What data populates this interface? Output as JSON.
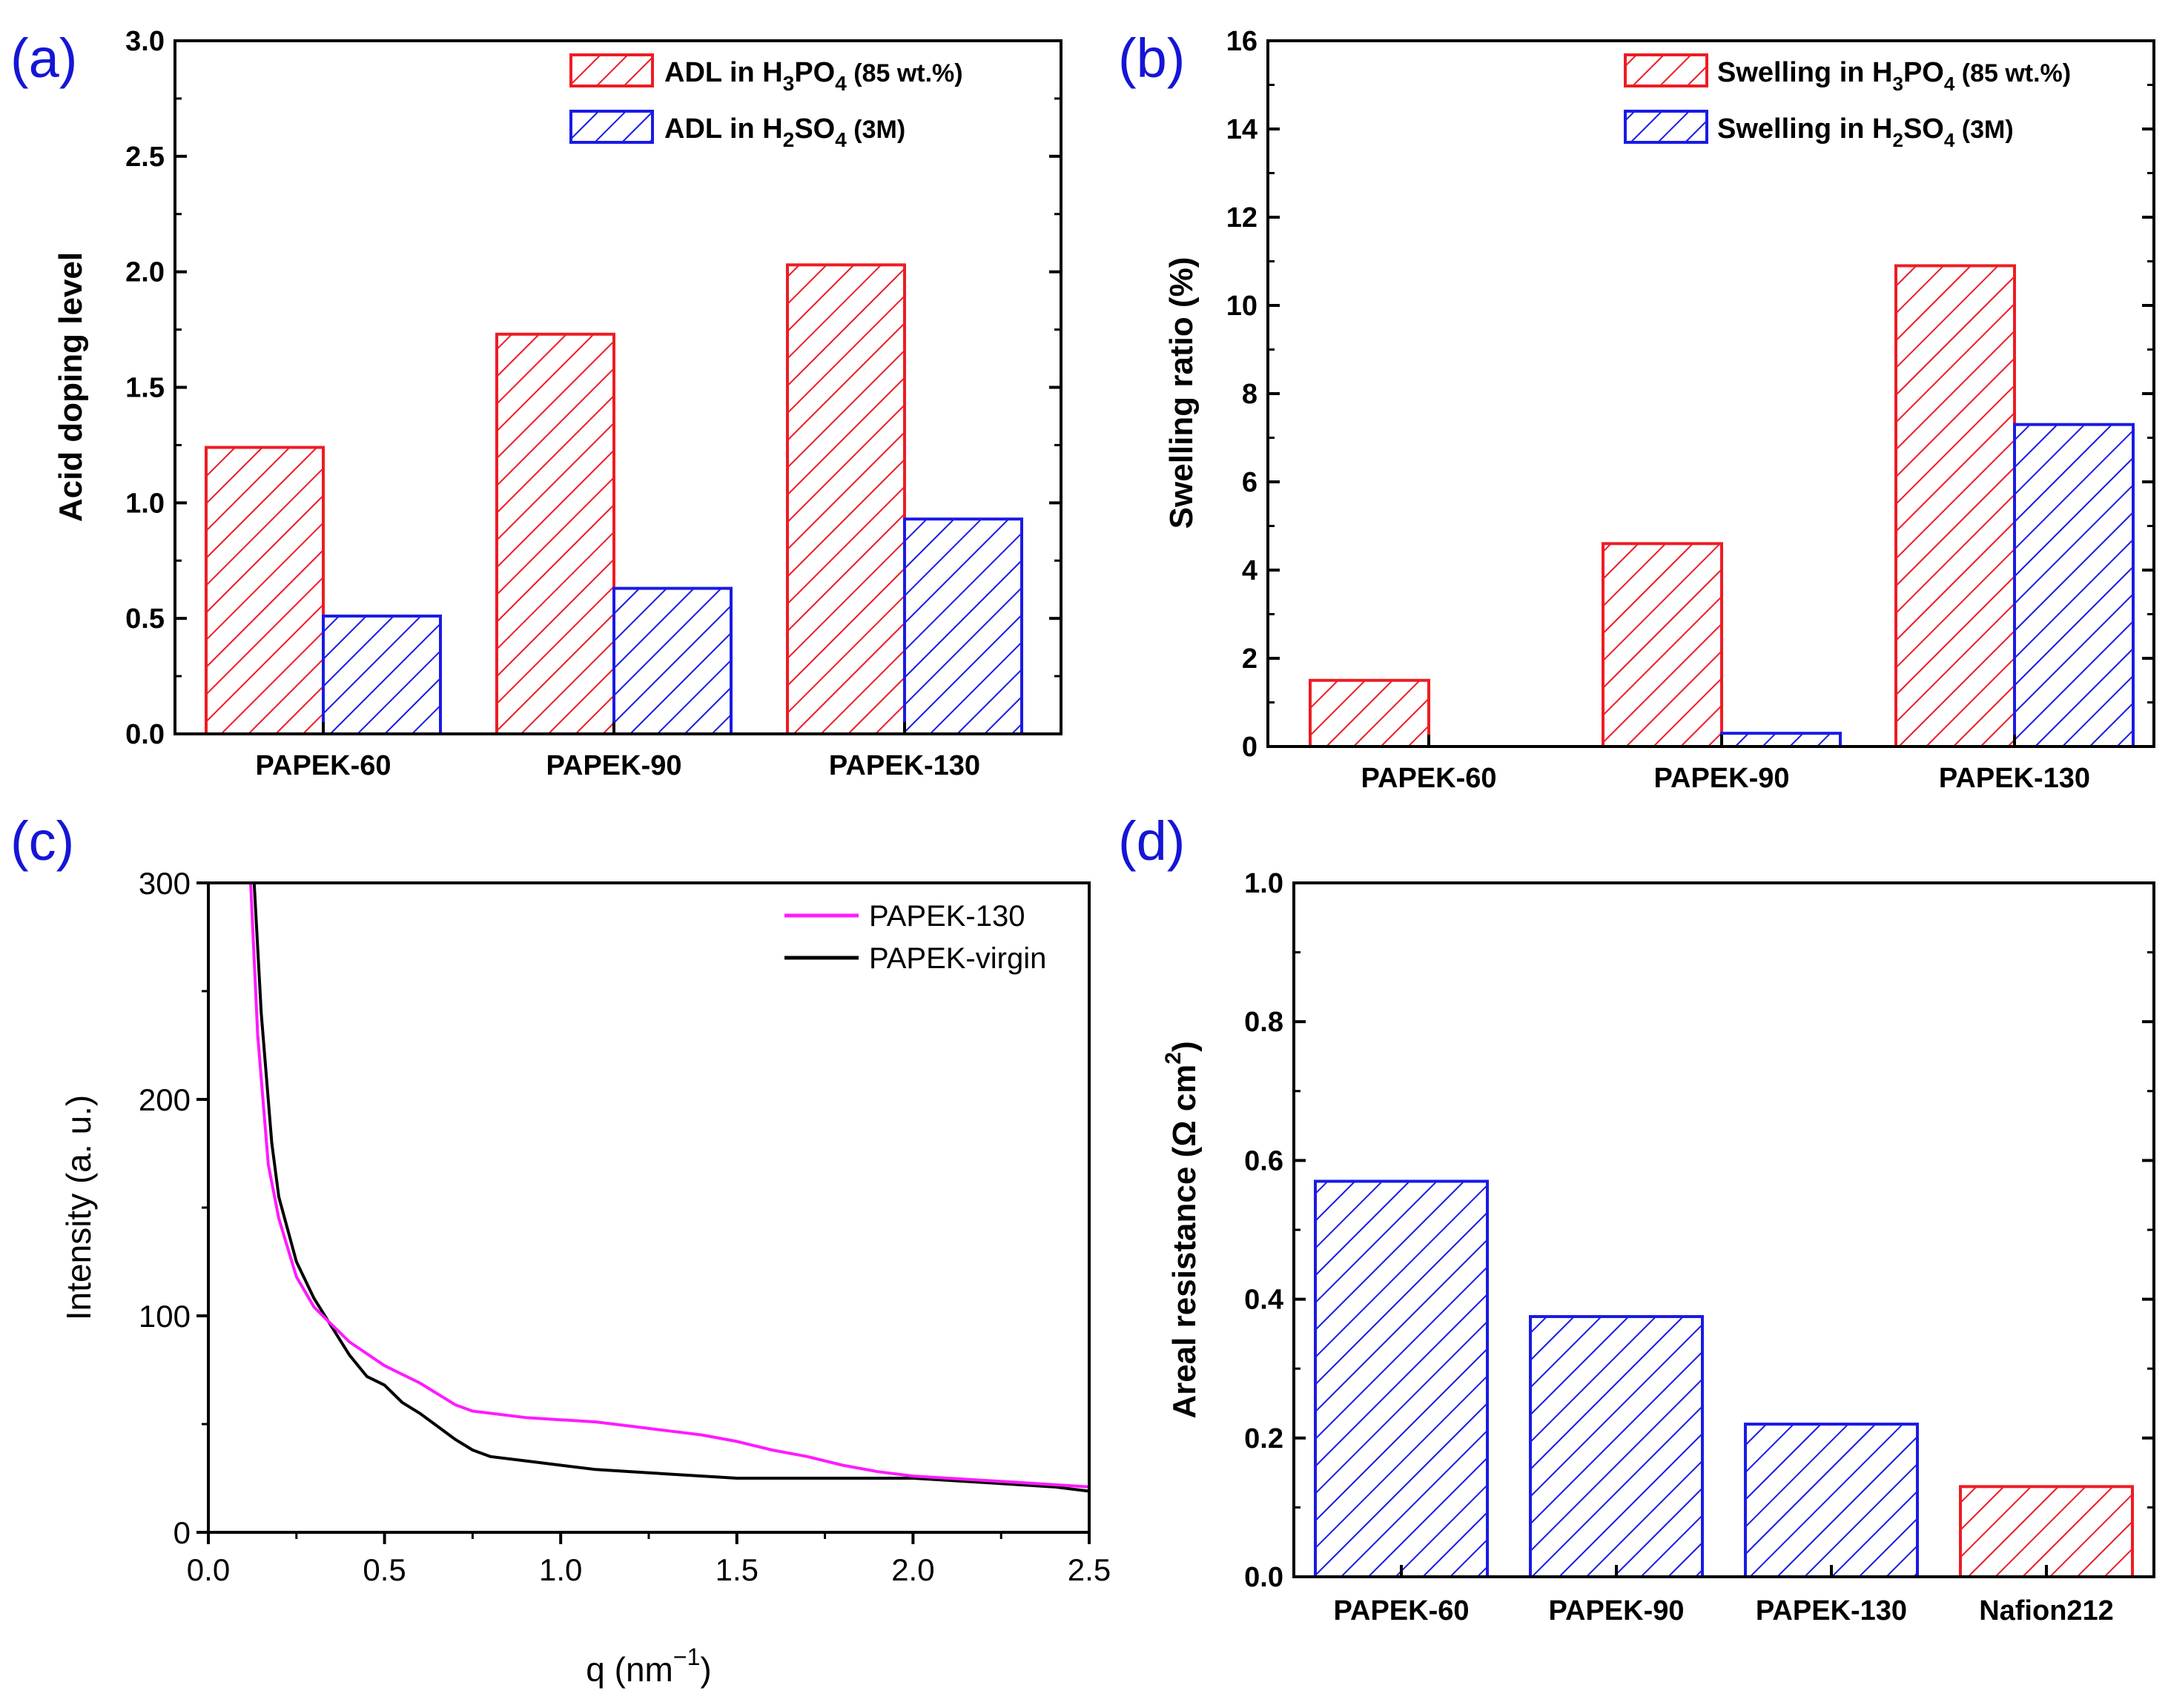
{
  "colors": {
    "red": "#ee1c24",
    "blue": "#1a1ae6",
    "magenta": "#ff1aff",
    "black": "#000000",
    "panel_label": "#1515d6"
  },
  "chart_data": [
    {
      "panel": "(a)",
      "type": "bar",
      "categories": [
        "PAPEK-60",
        "PAPEK-90",
        "PAPEK-130"
      ],
      "series": [
        {
          "name": "ADL in H3PO4 (85 wt.%)",
          "legend_parts": [
            "ADL in H",
            "3",
            "PO",
            "4",
            " (85 wt.%)"
          ],
          "color": "#ee1c24",
          "values": [
            1.24,
            1.73,
            2.03
          ]
        },
        {
          "name": "ADL in H2SO4 (3M)",
          "legend_parts": [
            "ADL in H",
            "2",
            "SO",
            "4",
            " (3M)"
          ],
          "color": "#1a1ae6",
          "values": [
            0.51,
            0.63,
            0.93
          ]
        }
      ],
      "ylabel": "Acid doping level",
      "xlabel": "",
      "ylim": [
        0,
        3.0
      ],
      "yticks": [
        "0.0",
        "0.5",
        "1.0",
        "1.5",
        "2.0",
        "2.5",
        "3.0"
      ],
      "legend_position": "top-right"
    },
    {
      "panel": "(b)",
      "type": "bar",
      "categories": [
        "PAPEK-60",
        "PAPEK-90",
        "PAPEK-130"
      ],
      "series": [
        {
          "name": "Swelling in H3PO4 (85 wt.%)",
          "legend_parts": [
            "Swelling in H",
            "3",
            "PO",
            "4",
            " (85 wt.%)"
          ],
          "color": "#ee1c24",
          "values": [
            1.5,
            4.6,
            10.9
          ]
        },
        {
          "name": "Swelling in H2SO4 (3M)",
          "legend_parts": [
            "Swelling in H",
            "2",
            "SO",
            "4",
            " (3M)"
          ],
          "color": "#1a1ae6",
          "values": [
            0.0,
            0.3,
            7.3
          ]
        }
      ],
      "ylabel": "Swelling ratio (%)",
      "xlabel": "",
      "ylim": [
        0,
        16
      ],
      "yticks": [
        "0",
        "2",
        "4",
        "6",
        "8",
        "10",
        "12",
        "14",
        "16"
      ],
      "legend_position": "top-right"
    },
    {
      "panel": "(c)",
      "type": "line",
      "series": [
        {
          "name": "PAPEK-130",
          "color": "#ff1aff",
          "x": [
            0.12,
            0.14,
            0.17,
            0.2,
            0.25,
            0.3,
            0.35,
            0.4,
            0.5,
            0.6,
            0.7,
            0.75,
            0.8,
            0.9,
            1.0,
            1.1,
            1.2,
            1.3,
            1.4,
            1.5,
            1.6,
            1.7,
            1.8,
            1.9,
            2.0,
            2.1,
            2.2,
            2.3,
            2.4,
            2.5
          ],
          "y": [
            300,
            230,
            170,
            145,
            118,
            104,
            96,
            88,
            77,
            69,
            59,
            56,
            55,
            53,
            52,
            51,
            49,
            47,
            45,
            42,
            38,
            35,
            31,
            28,
            26,
            25,
            24,
            23,
            22,
            21
          ]
        },
        {
          "name": "PAPEK-virgin",
          "color": "#000000",
          "x": [
            0.13,
            0.15,
            0.18,
            0.2,
            0.25,
            0.3,
            0.35,
            0.4,
            0.45,
            0.5,
            0.55,
            0.6,
            0.65,
            0.7,
            0.75,
            0.8,
            0.9,
            1.0,
            1.1,
            1.2,
            1.3,
            1.4,
            1.5,
            1.6,
            1.8,
            2.0,
            2.1,
            2.2,
            2.3,
            2.4,
            2.5
          ],
          "y": [
            300,
            240,
            180,
            155,
            125,
            108,
            95,
            82,
            72,
            68,
            60,
            55,
            49,
            43,
            38,
            35,
            33,
            31,
            29,
            28,
            27,
            26,
            25,
            25,
            25,
            25,
            24,
            23,
            22,
            21,
            19
          ]
        }
      ],
      "xlabel_parts": [
        "q (nm",
        "−1",
        ")"
      ],
      "ylabel": "Intensity (a. u.)",
      "xlim": [
        0,
        2.5
      ],
      "ylim": [
        0,
        300
      ],
      "xticks": [
        "0.0",
        "0.5",
        "1.0",
        "1.5",
        "2.0",
        "2.5"
      ],
      "yticks": [
        "0",
        "100",
        "200",
        "300"
      ],
      "legend_position": "top-right"
    },
    {
      "panel": "(d)",
      "type": "bar",
      "categories": [
        "PAPEK-60",
        "PAPEK-90",
        "PAPEK-130",
        "Nafion212"
      ],
      "values": [
        0.57,
        0.375,
        0.22,
        0.13
      ],
      "bar_colors": [
        "#1a1ae6",
        "#1a1ae6",
        "#1a1ae6",
        "#ee1c24"
      ],
      "ylabel_parts": [
        "Areal resistance (Ω cm",
        "2",
        ")"
      ],
      "xlabel": "",
      "ylim": [
        0,
        1.0
      ],
      "yticks": [
        "0.0",
        "0.2",
        "0.4",
        "0.6",
        "0.8",
        "1.0"
      ]
    }
  ]
}
